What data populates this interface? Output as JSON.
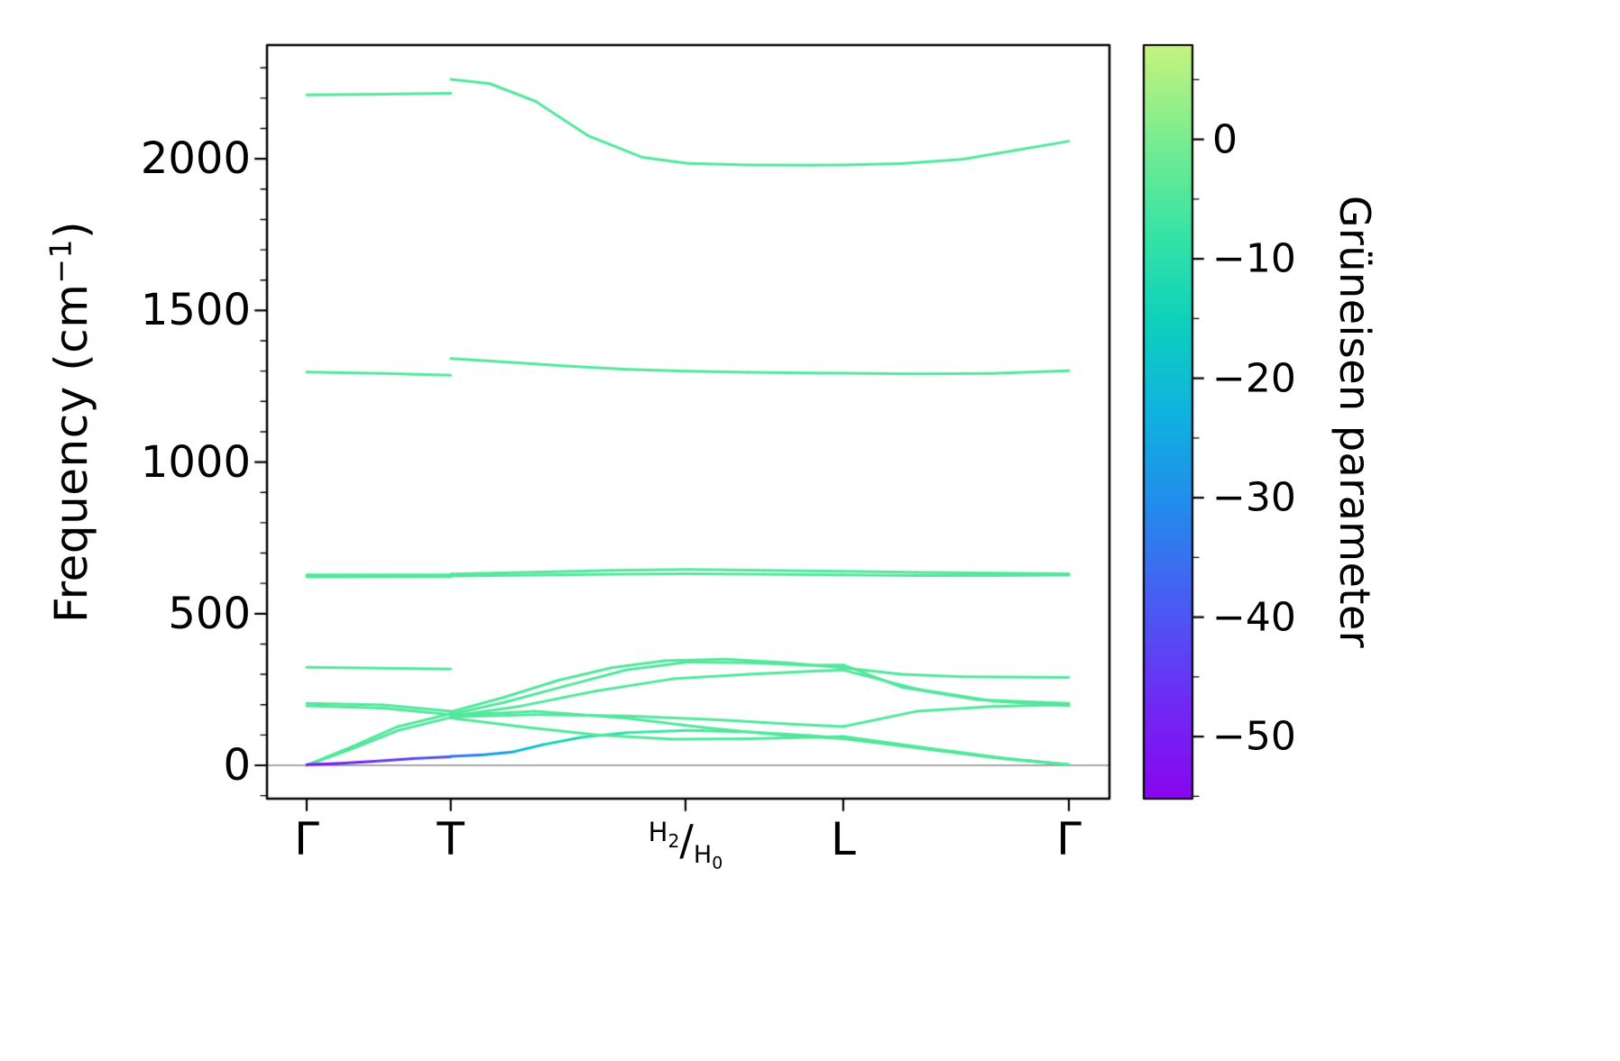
{
  "figure": {
    "background": "#ffffff"
  },
  "chart_data": {
    "type": "line",
    "title": "",
    "description": "Phonon dispersion (band structure) colored by Grüneisen parameter along the path Γ–T–H2/H0–L–Γ",
    "ylabel": {
      "pre": "Frequency (cm",
      "sup": "−1",
      "post": ")"
    },
    "ylim": [
      -110,
      2375
    ],
    "y_ticks": [
      {
        "v": 0,
        "label": "0"
      },
      {
        "v": 500,
        "label": "500"
      },
      {
        "v": 1000,
        "label": "1000"
      },
      {
        "v": 1500,
        "label": "1500"
      },
      {
        "v": 2000,
        "label": "2000"
      }
    ],
    "y_minor_tick_step": 100,
    "x_path": [
      {
        "v": 0,
        "label": "Γ"
      },
      {
        "v": 0.189,
        "label": "T"
      },
      {
        "v": 0.497,
        "label": "H2/H0",
        "frac": {
          "num": "H",
          "num_sub": "2",
          "sep": "/",
          "den": "H",
          "den_sub": "0"
        }
      },
      {
        "v": 0.704,
        "label": "L"
      },
      {
        "v": 1,
        "label": "Γ"
      }
    ],
    "zero_line": {
      "y": 0,
      "color": "#8a8a8a"
    },
    "line_width": 3,
    "default_gruneisen": -4.5,
    "colorbar": {
      "label": "Grüneisen parameter",
      "domain": [
        -55.2,
        7.9
      ],
      "ticks": [
        {
          "v": 0,
          "label": "0"
        },
        {
          "v": -10,
          "label": "−10"
        },
        {
          "v": -20,
          "label": "−20"
        },
        {
          "v": -30,
          "label": "−30"
        },
        {
          "v": -40,
          "label": "−40"
        },
        {
          "v": -50,
          "label": "−50"
        }
      ],
      "minor_ticks": [
        5,
        -5,
        -15,
        -25,
        -35,
        -45,
        -55
      ],
      "stops": [
        {
          "v": -55.2,
          "c": "#8A05EF"
        },
        {
          "v": -47,
          "c": "#6E2BF4"
        },
        {
          "v": -39,
          "c": "#4A5BF2"
        },
        {
          "v": -31,
          "c": "#2489EC"
        },
        {
          "v": -23,
          "c": "#0FB2E0"
        },
        {
          "v": -15,
          "c": "#0ED1BB"
        },
        {
          "v": -8,
          "c": "#37E3A6"
        },
        {
          "v": -2,
          "c": "#66EA95"
        },
        {
          "v": 3,
          "c": "#97EF88"
        },
        {
          "v": 7.9,
          "c": "#C6F37E"
        }
      ]
    },
    "bands": [
      {
        "x": [
          0,
          0.1,
          0.189
        ],
        "y": [
          2211,
          2213,
          2216
        ]
      },
      {
        "x": [
          0.189,
          0.24,
          0.3,
          0.37,
          0.44,
          0.5,
          0.58,
          0.66,
          0.704,
          0.78,
          0.86,
          0.93,
          1.0
        ],
        "y": [
          2262,
          2248,
          2190,
          2075,
          2005,
          1985,
          1980,
          1979,
          1980,
          1984,
          1998,
          2028,
          2058
        ]
      },
      {
        "x": [
          0,
          0.1,
          0.189
        ],
        "y": [
          1297,
          1292,
          1286
        ]
      },
      {
        "x": [
          0.189,
          0.26,
          0.34,
          0.42,
          0.5,
          0.58,
          0.66,
          0.704,
          0.8,
          0.9,
          1.0
        ],
        "y": [
          1341,
          1330,
          1317,
          1306,
          1300,
          1296,
          1294,
          1293,
          1291,
          1292,
          1301
        ]
      },
      {
        "x": [
          0,
          0.189
        ],
        "y": [
          628,
          628
        ]
      },
      {
        "x": [
          0.189,
          0.3,
          0.4,
          0.5,
          0.6,
          0.704,
          0.8,
          0.9,
          1.0
        ],
        "y": [
          631,
          637,
          643,
          646,
          643,
          640,
          636,
          634,
          632
        ]
      },
      {
        "x": [
          0,
          0.189
        ],
        "y": [
          621,
          622
        ]
      },
      {
        "x": [
          0.189,
          0.3,
          0.4,
          0.5,
          0.6,
          0.704,
          0.8,
          0.9,
          1.0
        ],
        "y": [
          624,
          627,
          630,
          632,
          630,
          628,
          626,
          626,
          627
        ]
      },
      {
        "x": [
          0,
          0.1,
          0.189
        ],
        "y": [
          323,
          320,
          317
        ]
      },
      {
        "x": [
          0,
          0.1,
          0.189
        ],
        "y": [
          204,
          199,
          178
        ]
      },
      {
        "x": [
          0,
          0.1,
          0.189
        ],
        "y": [
          196,
          189,
          167
        ]
      },
      {
        "x": [
          0,
          0.06,
          0.12,
          0.189
        ],
        "y": [
          0,
          55,
          115,
          158
        ]
      },
      {
        "x": [
          0,
          0.06,
          0.12,
          0.189
        ],
        "y": [
          0,
          62,
          128,
          170
        ]
      },
      {
        "x": [
          0,
          0.04,
          0.09,
          0.14,
          0.189
        ],
        "y": [
          2,
          6,
          13,
          22,
          28
        ],
        "g": [
          -53,
          -50,
          -46,
          -42,
          -39
        ]
      },
      {
        "x": [
          0.189,
          0.23,
          0.27,
          0.31,
          0.36,
          0.42,
          0.5,
          0.58,
          0.66,
          0.704,
          0.8,
          0.9,
          1.0
        ],
        "y": [
          30,
          34,
          44,
          68,
          92,
          108,
          115,
          110,
          98,
          90,
          58,
          26,
          2
        ],
        "g": [
          -37,
          -30,
          -24,
          -17,
          -11,
          -8,
          -6,
          -5,
          -5,
          -5,
          -5,
          -5,
          -5
        ]
      },
      {
        "x": [
          0.189,
          0.26,
          0.33,
          0.4,
          0.47,
          0.55,
          0.63,
          0.704,
          0.78,
          0.86,
          1.0
        ],
        "y": [
          176,
          225,
          280,
          322,
          345,
          350,
          338,
          322,
          300,
          292,
          290
        ]
      },
      {
        "x": [
          0.189,
          0.26,
          0.34,
          0.42,
          0.5,
          0.58,
          0.66,
          0.704,
          0.78,
          0.88,
          1.0
        ],
        "y": [
          168,
          208,
          262,
          315,
          340,
          338,
          330,
          331,
          258,
          216,
          204
        ]
      },
      {
        "x": [
          0.189,
          0.28,
          0.38,
          0.48,
          0.58,
          0.66,
          0.704,
          0.8,
          0.9,
          1.0
        ],
        "y": [
          162,
          195,
          245,
          285,
          300,
          310,
          314,
          252,
          212,
          196
        ]
      },
      {
        "x": [
          0.189,
          0.3,
          0.42,
          0.54,
          0.64,
          0.704,
          0.8,
          0.9,
          1.0
        ],
        "y": [
          160,
          167,
          163,
          150,
          135,
          128,
          178,
          194,
          200
        ]
      },
      {
        "x": [
          0.189,
          0.28,
          0.38,
          0.48,
          0.58,
          0.66,
          0.704,
          0.82,
          0.92,
          1.0
        ],
        "y": [
          156,
          128,
          100,
          86,
          88,
          92,
          95,
          55,
          22,
          2
        ]
      },
      {
        "x": [
          0.189,
          0.3,
          0.42,
          0.52,
          0.62,
          0.704,
          0.82,
          0.92,
          1.0
        ],
        "y": [
          164,
          178,
          155,
          125,
          100,
          88,
          52,
          20,
          2
        ]
      }
    ]
  }
}
